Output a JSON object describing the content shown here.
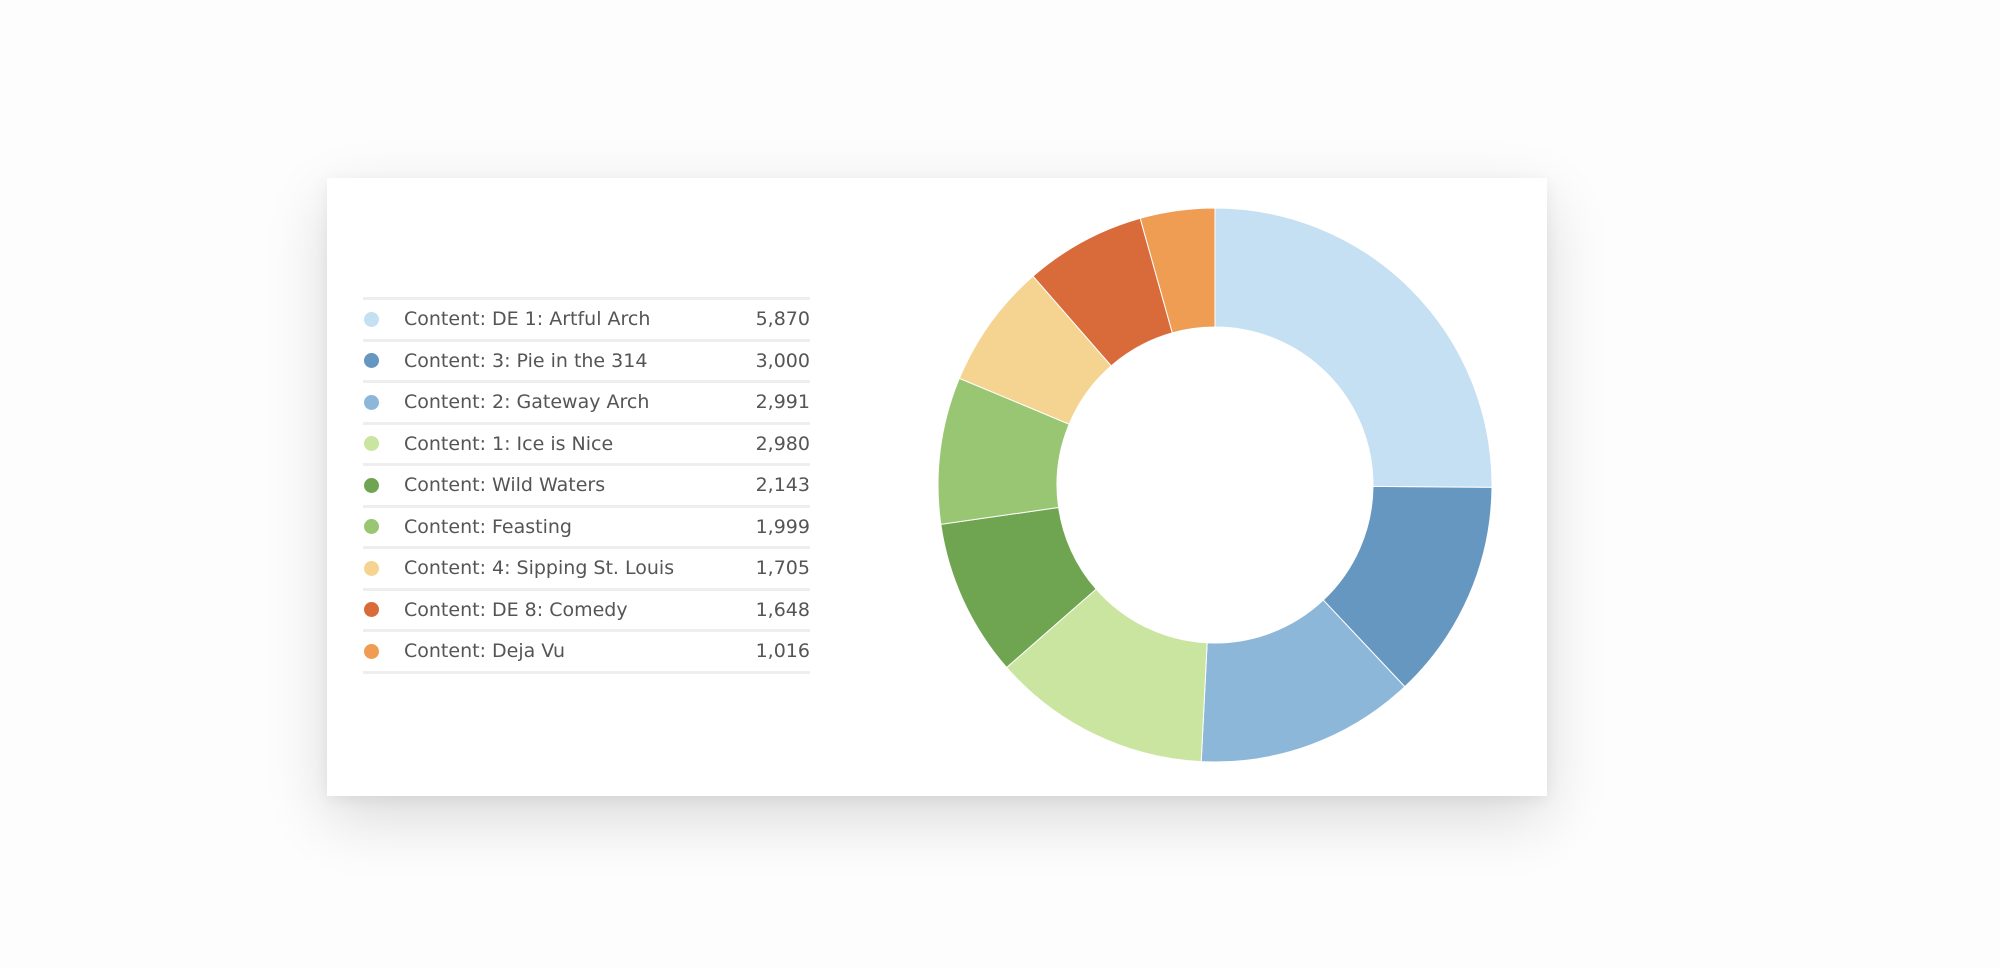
{
  "chart_data": {
    "type": "pie",
    "donut": true,
    "legend_position": "left",
    "series": [
      {
        "name": "Content: DE 1: Artful Arch",
        "value": 5870,
        "value_label": "5,870",
        "color": "#c5dff3"
      },
      {
        "name": "Content: 3: Pie in the 314",
        "value": 3000,
        "value_label": "3,000",
        "color": "#6697c1"
      },
      {
        "name": "Content: 2: Gateway Arch",
        "value": 2991,
        "value_label": "2,991",
        "color": "#8db7d9"
      },
      {
        "name": "Content: 1: Ice is Nice",
        "value": 2980,
        "value_label": "2,980",
        "color": "#c9e59f"
      },
      {
        "name": "Content: Wild Waters",
        "value": 2143,
        "value_label": "2,143",
        "color": "#6fa550"
      },
      {
        "name": "Content: Feasting",
        "value": 1999,
        "value_label": "1,999",
        "color": "#99c672"
      },
      {
        "name": "Content: 4: Sipping St. Louis",
        "value": 1705,
        "value_label": "1,705",
        "color": "#f5d492"
      },
      {
        "name": "Content: DE 8: Comedy",
        "value": 1648,
        "value_label": "1,648",
        "color": "#d96b3b"
      },
      {
        "name": "Content: Deja Vu",
        "value": 1016,
        "value_label": "1,016",
        "color": "#ee9d52"
      }
    ]
  }
}
